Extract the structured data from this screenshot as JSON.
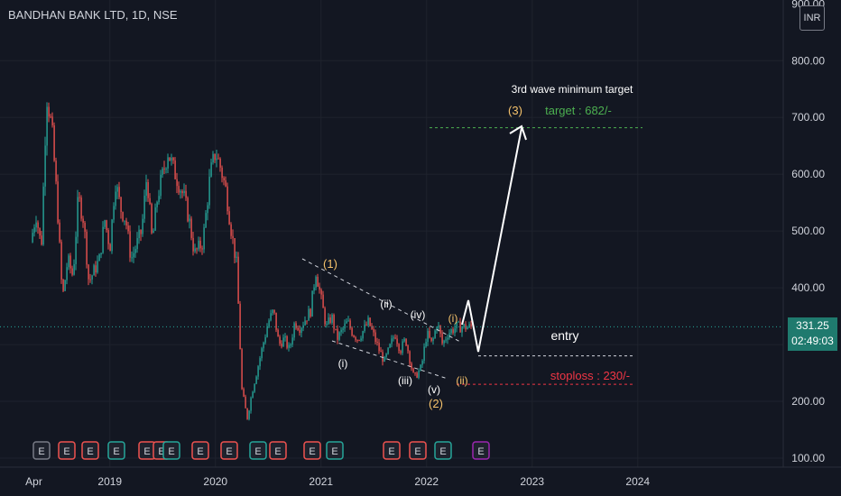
{
  "header": {
    "title": "BANDHAN BANK LTD, 1D, NSE",
    "currency": "INR"
  },
  "last_price": {
    "value": "331.25",
    "countdown": "02:49:03"
  },
  "colors": {
    "bg": "#131722",
    "up": "#26a69a",
    "down": "#ef5350",
    "grid": "#1e222d",
    "axis_text": "#d1d4dc",
    "target": "#4caf50",
    "stop": "#f23645",
    "wave": "#f5c26b",
    "white": "#ffffff"
  },
  "chart_data": {
    "type": "candlestick",
    "title": "BANDHAN BANK LTD, 1D, NSE",
    "y_ticks": [
      "100.00",
      "200.00",
      "300.00",
      "400.00",
      "500.00",
      "600.00",
      "700.00",
      "800.00",
      "900.00"
    ],
    "x_ticks": [
      "Apr",
      "2019",
      "2020",
      "2021",
      "2022",
      "2023",
      "2024"
    ],
    "ylim": [
      100,
      900
    ],
    "price_path": [
      [
        2018.25,
        480
      ],
      [
        2018.3,
        530
      ],
      [
        2018.35,
        470
      ],
      [
        2018.4,
        740
      ],
      [
        2018.45,
        680
      ],
      [
        2018.5,
        550
      ],
      [
        2018.55,
        380
      ],
      [
        2018.6,
        450
      ],
      [
        2018.65,
        420
      ],
      [
        2018.7,
        560
      ],
      [
        2018.75,
        520
      ],
      [
        2018.8,
        410
      ],
      [
        2018.9,
        450
      ],
      [
        2018.95,
        520
      ],
      [
        2019.0,
        470
      ],
      [
        2019.05,
        590
      ],
      [
        2019.1,
        540
      ],
      [
        2019.15,
        520
      ],
      [
        2019.2,
        450
      ],
      [
        2019.3,
        500
      ],
      [
        2019.35,
        600
      ],
      [
        2019.4,
        480
      ],
      [
        2019.45,
        560
      ],
      [
        2019.55,
        640
      ],
      [
        2019.6,
        610
      ],
      [
        2019.7,
        560
      ],
      [
        2019.75,
        520
      ],
      [
        2019.8,
        460
      ],
      [
        2019.88,
        480
      ],
      [
        2019.95,
        600
      ],
      [
        2020.0,
        640
      ],
      [
        2020.05,
        610
      ],
      [
        2020.1,
        570
      ],
      [
        2020.15,
        500
      ],
      [
        2020.2,
        440
      ],
      [
        2020.25,
        220
      ],
      [
        2020.3,
        170
      ],
      [
        2020.35,
        220
      ],
      [
        2020.4,
        260
      ],
      [
        2020.45,
        300
      ],
      [
        2020.5,
        340
      ],
      [
        2020.55,
        360
      ],
      [
        2020.6,
        300
      ],
      [
        2020.65,
        310
      ],
      [
        2020.7,
        290
      ],
      [
        2020.75,
        340
      ],
      [
        2020.8,
        330
      ],
      [
        2020.9,
        360
      ],
      [
        2020.95,
        430
      ],
      [
        2021.0,
        380
      ],
      [
        2021.05,
        330
      ],
      [
        2021.1,
        350
      ],
      [
        2021.15,
        310
      ],
      [
        2021.25,
        340
      ],
      [
        2021.3,
        320
      ],
      [
        2021.35,
        310
      ],
      [
        2021.45,
        340
      ],
      [
        2021.55,
        290
      ],
      [
        2021.6,
        270
      ],
      [
        2021.7,
        320
      ],
      [
        2021.75,
        290
      ],
      [
        2021.8,
        310
      ],
      [
        2021.88,
        240
      ],
      [
        2021.95,
        260
      ],
      [
        2022.0,
        320
      ],
      [
        2022.05,
        300
      ],
      [
        2022.1,
        340
      ],
      [
        2022.15,
        300
      ],
      [
        2022.2,
        320
      ],
      [
        2022.28,
        331
      ]
    ],
    "earnings_markers": [
      "E",
      "E",
      "E",
      "E",
      "E",
      "E",
      "E",
      "E",
      "E",
      "E",
      "E",
      "E",
      "E",
      "E",
      "E",
      "E"
    ],
    "annotations": {
      "wave_labels": [
        "(1)",
        "(2)",
        "(3)",
        "(i)",
        "(ii)",
        "(iii)",
        "(iv)",
        "(v)",
        "(i)",
        "(ii)"
      ],
      "target_title": "3rd wave minimum target",
      "target_text": "target : 682/-",
      "target_level": 682,
      "entry_text": "entry",
      "entry_level": 280,
      "stoploss_text": "stoploss : 230/-",
      "stoploss_level": 230,
      "current_level": 331.25
    }
  }
}
